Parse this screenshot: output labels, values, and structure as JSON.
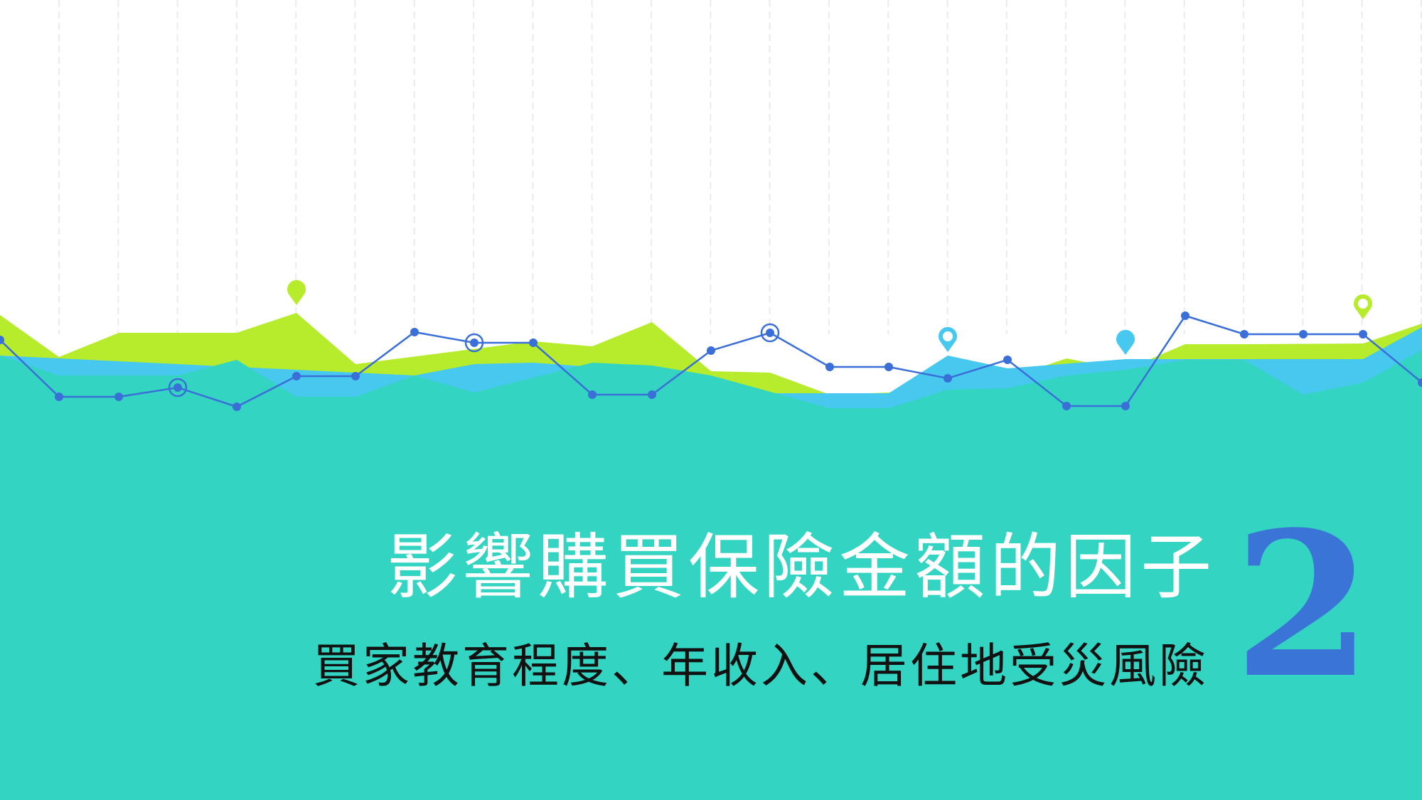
{
  "slide": {
    "title": "影響購買保險金額的因子",
    "subtitle": "買家教育程度、年收入、居住地受災風險",
    "section_number": "2"
  },
  "colors": {
    "teal": "#33d4c2",
    "lime": "#b6ec2c",
    "sky": "#47c8ef",
    "line": "#3a6fd8",
    "gridline": "#ebebeb",
    "title_text": "#ffffff",
    "subtitle_text": "#111111",
    "number": "#3a74d6"
  },
  "decoration": {
    "icons": [
      "map-pin-icon",
      "target-ring-icon"
    ]
  }
}
